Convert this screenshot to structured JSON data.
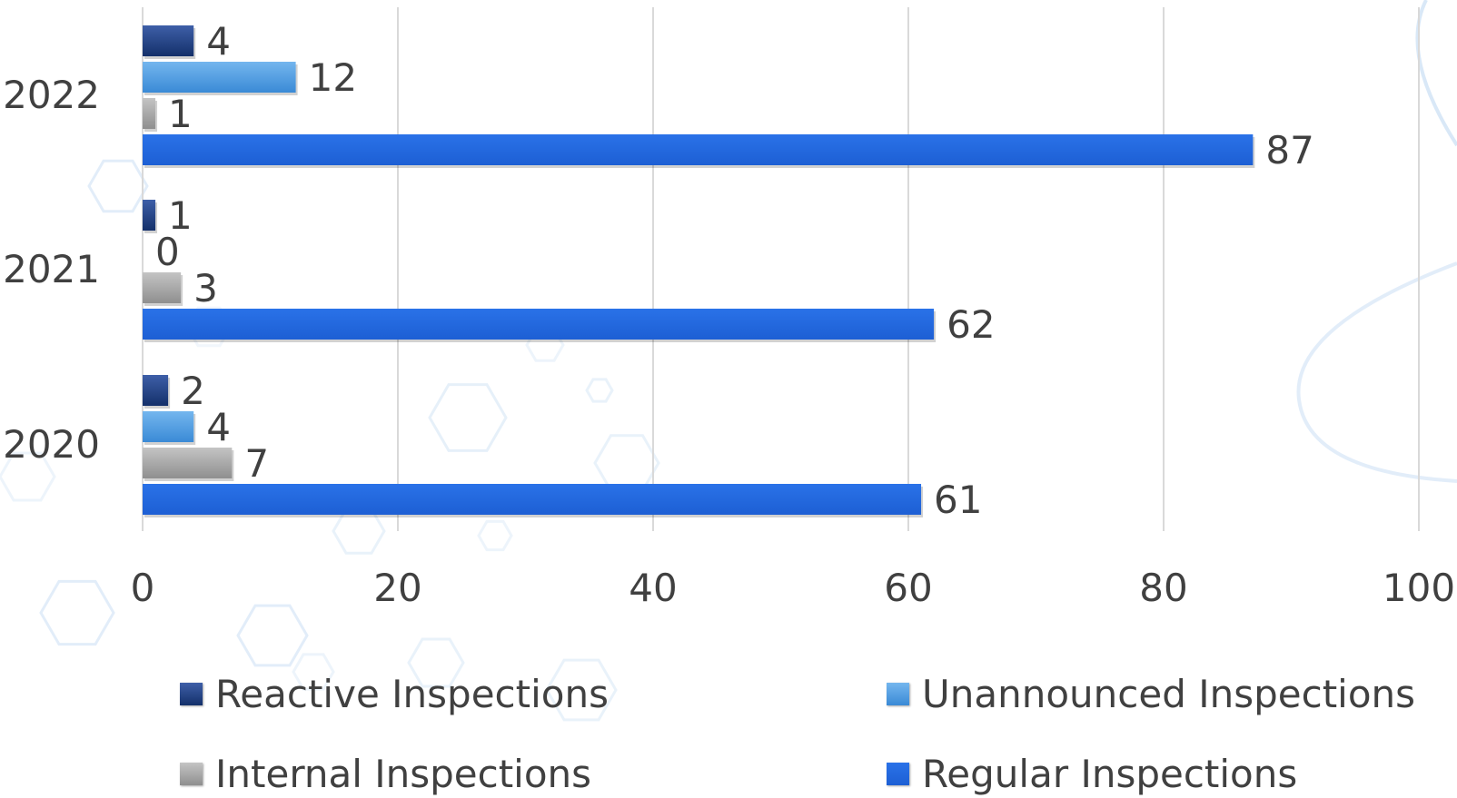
{
  "chart_data": {
    "type": "bar",
    "orientation": "horizontal",
    "categories": [
      "2020",
      "2021",
      "2022"
    ],
    "series": [
      {
        "name": "Reactive Inspections",
        "values": [
          2,
          1,
          4
        ],
        "color": "#1f3f7f"
      },
      {
        "name": "Unannounced Inspections",
        "values": [
          4,
          0,
          12
        ],
        "color": "#4b9be0"
      },
      {
        "name": "Internal Inspections",
        "values": [
          7,
          3,
          1
        ],
        "color": "#a6a6a6"
      },
      {
        "name": "Regular Inspections",
        "values": [
          61,
          62,
          87
        ],
        "color": "#2266dd"
      }
    ],
    "xlim": [
      0,
      100
    ],
    "xticks": [
      "0",
      "20",
      "40",
      "60",
      "80",
      "100"
    ],
    "grid": true,
    "data_labels": true,
    "legend_position": "bottom"
  }
}
